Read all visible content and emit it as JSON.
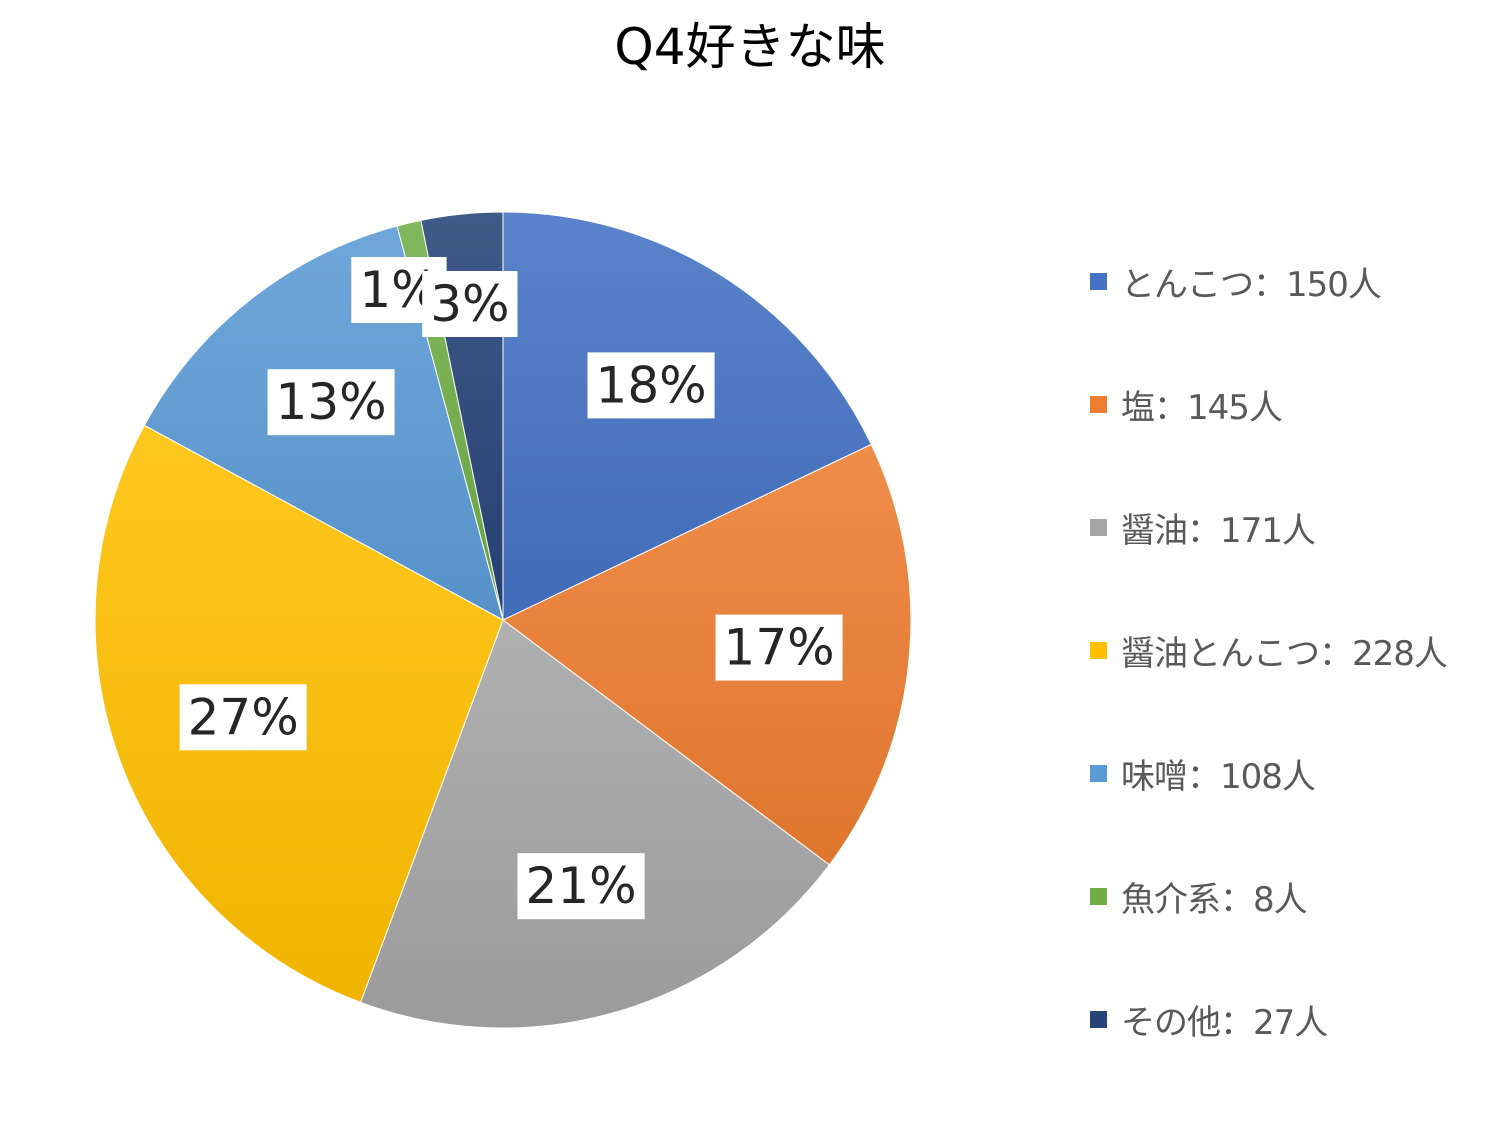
{
  "chart_data": {
    "type": "pie",
    "title": "Q4好きな味",
    "start_angle_deg": 0,
    "direction": "clockwise",
    "slices": [
      {
        "legend": "とんこつ：150人",
        "value": 150,
        "percent_label": "18%",
        "color": "#4472C4"
      },
      {
        "legend": "塩：145人",
        "value": 145,
        "percent_label": "17%",
        "color": "#ED7D31"
      },
      {
        "legend": "醤油：171人",
        "value": 171,
        "percent_label": "21%",
        "color": "#A5A5A5"
      },
      {
        "legend": "醤油とんこつ：228人",
        "value": 228,
        "percent_label": "27%",
        "color": "#FFC000"
      },
      {
        "legend": "味噌：108人",
        "value": 108,
        "percent_label": "13%",
        "color": "#5B9BD5"
      },
      {
        "legend": "魚介系：8人",
        "value": 8,
        "percent_label": "1%",
        "color": "#70AD47"
      },
      {
        "legend": "その他：27人",
        "value": 27,
        "percent_label": "3%",
        "color": "#264478"
      }
    ],
    "legend_position": "right",
    "data_labels": "percent"
  }
}
